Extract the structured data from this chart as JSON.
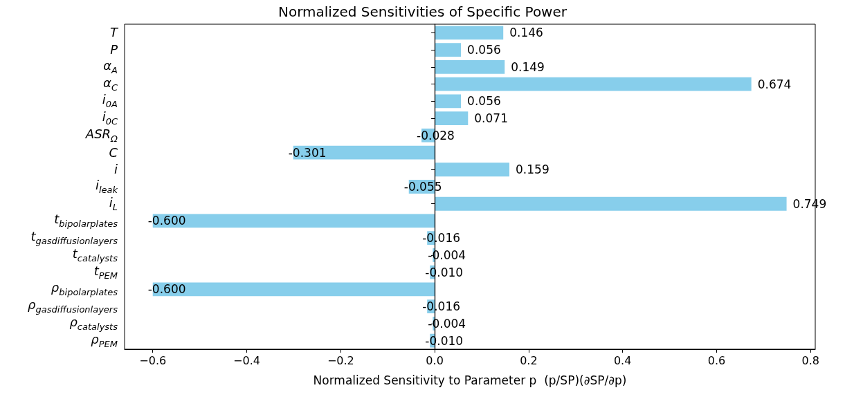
{
  "chart_data": {
    "type": "bar",
    "orientation": "horizontal",
    "title": "Normalized Sensitivities of Specific Power",
    "xlabel": "Normalized Sensitivity to Parameter p  (p/SP)(∂SP/∂p)",
    "categories": [
      "T",
      "P",
      "α$_{A}$",
      "α$_{C}$",
      "i$_{0A}$",
      "i$_{0C}$",
      "ASR$_{Ω}$",
      "C",
      "i",
      "i$_{leak}$",
      "i$_{L}$",
      "t$_{bipolarplates}$",
      "t$_{gasdiffusionlayers}$",
      "t$_{catalysts}$",
      "t$_{PEM}$",
      "ρ$_{bipolarplates}$",
      "ρ$_{gasdiffusionlayers}$",
      "ρ$_{catalysts}$",
      "ρ$_{PEM}$"
    ],
    "values": [
      0.146,
      0.056,
      0.149,
      0.674,
      0.056,
      0.071,
      -0.028,
      -0.301,
      0.159,
      -0.055,
      0.749,
      -0.6,
      -0.016,
      -0.004,
      -0.01,
      -0.6,
      -0.016,
      -0.004,
      -0.01
    ],
    "value_labels": [
      "0.146",
      "0.056",
      "0.149",
      "0.674",
      "0.056",
      "0.071",
      "-0.028",
      "-0.301",
      "0.159",
      "-0.055",
      "0.749",
      "-0.600",
      "-0.016",
      "-0.004",
      "-0.010",
      "-0.600",
      "-0.016",
      "-0.004",
      "-0.010"
    ],
    "color": "#87ceeb",
    "xlim": [
      -0.66,
      0.81
    ],
    "xticks": [
      {
        "value": -0.6,
        "label": "−0.6"
      },
      {
        "value": -0.4,
        "label": "−0.4"
      },
      {
        "value": -0.2,
        "label": "−0.2"
      },
      {
        "value": 0,
        "label": "0.0"
      },
      {
        "value": 0.2,
        "label": "0.2"
      },
      {
        "value": 0.4,
        "label": "0.4"
      },
      {
        "value": 0.6,
        "label": "0.6"
      },
      {
        "value": 0.8,
        "label": "0.8"
      }
    ],
    "ref_lines": [
      {
        "axis": "x",
        "value": 0,
        "color": "#000000"
      }
    ],
    "grid": false
  }
}
